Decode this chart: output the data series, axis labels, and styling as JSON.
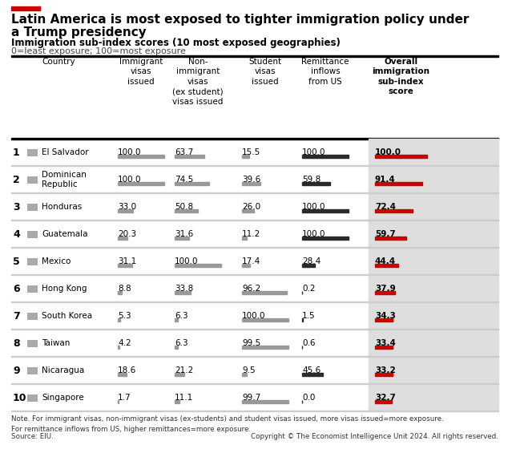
{
  "title_line1": "Latin America is most exposed to tighter immigration policy under",
  "title_line2": "a Trump presidency",
  "subtitle": "Immigration sub-index scores (10 most exposed geographies)",
  "subtitle2": "0=least exposure; 100=most exposure",
  "red_bar_color": "#CC0000",
  "dark_bar_color": "#2A2A2A",
  "gray_bar_color": "#999999",
  "highlight_bg": "#DEDEDE",
  "sep_color": "#CCCCCC",
  "countries": [
    "El Salvador",
    "Dominican\nRepublic",
    "Honduras",
    "Guatemala",
    "Mexico",
    "Hong Kong",
    "South Korea",
    "Taiwan",
    "Nicaragua",
    "Singapore"
  ],
  "ranks": [
    1,
    2,
    3,
    4,
    5,
    6,
    7,
    8,
    9,
    10
  ],
  "immigrant_visas": [
    100.0,
    100.0,
    33.0,
    20.3,
    31.1,
    8.8,
    5.3,
    4.2,
    18.6,
    1.7
  ],
  "non_immigrant_visas": [
    63.7,
    74.5,
    50.8,
    31.6,
    100.0,
    33.8,
    6.3,
    6.3,
    21.2,
    11.1
  ],
  "student_visas": [
    15.5,
    39.6,
    26.0,
    11.2,
    17.4,
    96.2,
    100.0,
    99.5,
    9.5,
    99.7
  ],
  "remittance_inflows": [
    100.0,
    59.8,
    100.0,
    100.0,
    28.4,
    0.2,
    1.5,
    0.6,
    45.6,
    0.0
  ],
  "overall_scores": [
    100.0,
    91.4,
    72.4,
    59.7,
    44.4,
    37.9,
    34.3,
    33.4,
    33.2,
    32.7
  ],
  "note": "Note. For immigrant visas, non-immigrant visas (ex-students) and student visas issued, more visas issued=more exposure.\nFor remittance inflows from US, higher remittances=more exposure.",
  "source": "Source: EIU.",
  "copyright": "Copyright © The Economist Intelligence Unit 2024. All rights reserved.",
  "figsize": [
    6.34,
    5.6
  ],
  "dpi": 100
}
